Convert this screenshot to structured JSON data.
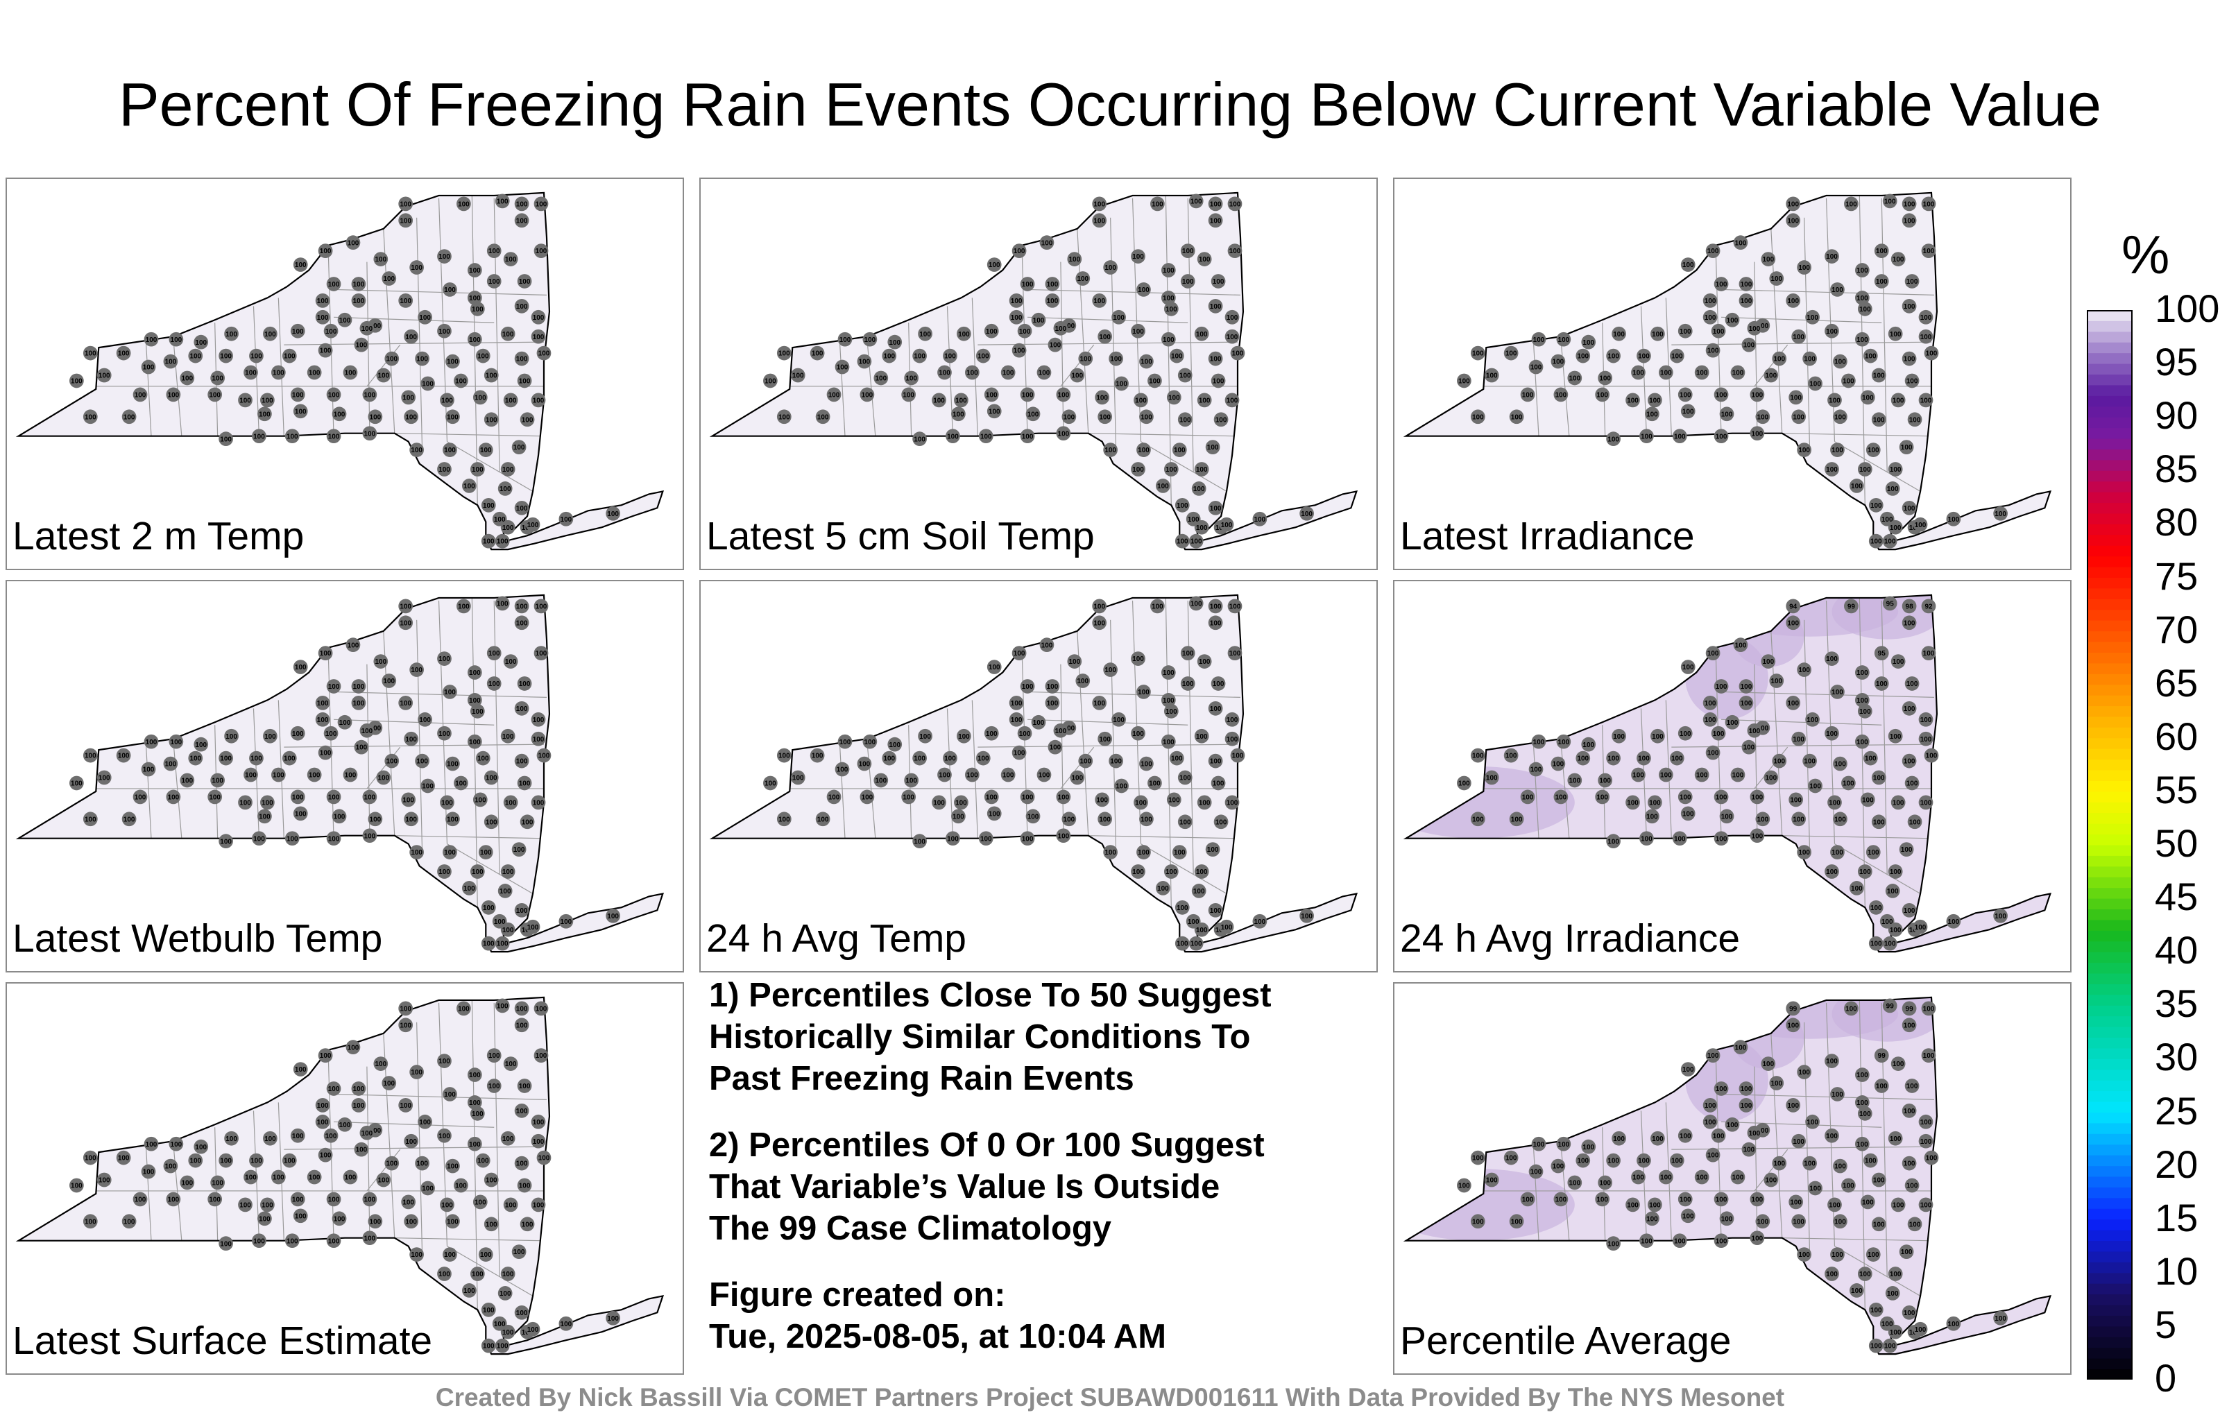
{
  "title": "Percent Of Freezing Rain Events Occurring Below Current Variable Value",
  "panels": [
    {
      "label": "Latest 2 m Temp",
      "tinted": false,
      "stations": [
        "100",
        "100",
        "100",
        "100",
        "100",
        "100",
        "100",
        "100",
        "100",
        "100",
        "100",
        "100",
        "100",
        "100",
        "100",
        "100",
        "100",
        "100",
        "100",
        "100",
        "100",
        "100",
        "100",
        "100",
        "100",
        "100",
        "100",
        "100",
        "100",
        "100",
        "100",
        "100",
        "100",
        "100",
        "100",
        "100",
        "100",
        "100",
        "100",
        "100",
        "100",
        "100",
        "100",
        "100",
        "100",
        "100",
        "100",
        "100",
        "100",
        "100",
        "100",
        "100",
        "100",
        "100",
        "100",
        "100",
        "100",
        "100",
        "100",
        "100",
        "100",
        "100",
        "100",
        "100",
        "100",
        "100",
        "100",
        "100",
        "100",
        "100",
        "100",
        "100",
        "100",
        "100",
        "100",
        "100",
        "100",
        "100",
        "100",
        "100",
        "100",
        "100",
        "100",
        "100",
        "100",
        "100",
        "100",
        "100",
        "100",
        "100",
        "100",
        "100",
        "100",
        "100",
        "100",
        "100",
        "100",
        "100",
        "100",
        "100",
        "100",
        "100",
        "100",
        "100",
        "100",
        "100",
        "100",
        "100",
        "100",
        "100",
        "100",
        "100",
        "100",
        "100",
        "100",
        "100",
        "100",
        "100",
        "100",
        "100",
        "100",
        "100",
        "100",
        "100",
        "100",
        "100"
      ]
    },
    {
      "label": "Latest 5 cm Soil Temp",
      "tinted": false,
      "stations": [
        "100",
        "100",
        "100",
        "100",
        "100",
        "100",
        "100",
        "100",
        "100",
        "100",
        "100",
        "100",
        "100",
        "100",
        "100",
        "100",
        "100",
        "100",
        "100",
        "100",
        "100",
        "100",
        "100",
        "100",
        "100",
        "100",
        "100",
        "100",
        "100",
        "100",
        "100",
        "100",
        "100",
        "100",
        "100",
        "100",
        "100",
        "100",
        "100",
        "100",
        "100",
        "100",
        "100",
        "100",
        "100",
        "100",
        "100",
        "100",
        "100",
        "100",
        "100",
        "100",
        "100",
        "100",
        "100",
        "100",
        "100",
        "100",
        "100",
        "100",
        "100",
        "100",
        "100",
        "100",
        "100",
        "100",
        "100",
        "100",
        "100",
        "100",
        "100",
        "100",
        "100",
        "100",
        "100",
        "100",
        "100",
        "100",
        "100",
        "100",
        "100",
        "100",
        "100",
        "100",
        "100",
        "100",
        "100",
        "100",
        "100",
        "100",
        "100",
        "100",
        "100",
        "100",
        "100",
        "100",
        "100",
        "100",
        "100",
        "100",
        "100",
        "100",
        "100",
        "100",
        "100",
        "100",
        "100",
        "100",
        "100",
        "100",
        "100",
        "100",
        "100",
        "100",
        "100",
        "100",
        "100",
        "100",
        "100",
        "100",
        "100",
        "100",
        "100",
        "100",
        "100",
        "100"
      ]
    },
    {
      "label": "Latest Irradiance",
      "tinted": false,
      "stations": [
        "100",
        "100",
        "100",
        "100",
        "100",
        "100",
        "100",
        "100",
        "100",
        "100",
        "100",
        "100",
        "100",
        "100",
        "100",
        "100",
        "100",
        "100",
        "100",
        "100",
        "100",
        "100",
        "100",
        "100",
        "100",
        "100",
        "100",
        "100",
        "100",
        "100",
        "100",
        "100",
        "100",
        "100",
        "100",
        "100",
        "100",
        "100",
        "100",
        "100",
        "100",
        "100",
        "100",
        "100",
        "100",
        "100",
        "100",
        "100",
        "100",
        "100",
        "100",
        "100",
        "100",
        "100",
        "100",
        "100",
        "100",
        "100",
        "100",
        "100",
        "100",
        "100",
        "100",
        "100",
        "100",
        "100",
        "100",
        "100",
        "100",
        "100",
        "100",
        "100",
        "100",
        "100",
        "100",
        "100",
        "100",
        "100",
        "100",
        "100",
        "100",
        "100",
        "100",
        "100",
        "100",
        "100",
        "100",
        "100",
        "100",
        "100",
        "100",
        "100",
        "100",
        "100",
        "100",
        "100",
        "100",
        "100",
        "100",
        "100",
        "100",
        "100",
        "100",
        "100",
        "100",
        "100",
        "100",
        "100",
        "100",
        "100",
        "100",
        "100",
        "100",
        "100",
        "100",
        "100",
        "100",
        "100",
        "100",
        "100",
        "100",
        "100",
        "100",
        "100",
        "100",
        "100"
      ]
    },
    {
      "label": "Latest Wetbulb Temp",
      "tinted": false,
      "stations": [
        "100",
        "100",
        "100",
        "100",
        "100",
        "100",
        "100",
        "100",
        "100",
        "100",
        "100",
        "100",
        "100",
        "100",
        "100",
        "100",
        "100",
        "100",
        "100",
        "100",
        "100",
        "100",
        "100",
        "100",
        "100",
        "100",
        "100",
        "100",
        "100",
        "100",
        "100",
        "100",
        "100",
        "100",
        "100",
        "100",
        "100",
        "100",
        "100",
        "100",
        "100",
        "100",
        "100",
        "100",
        "100",
        "100",
        "100",
        "100",
        "100",
        "100",
        "100",
        "100",
        "100",
        "100",
        "100",
        "100",
        "100",
        "100",
        "100",
        "100",
        "100",
        "100",
        "100",
        "100",
        "100",
        "100",
        "100",
        "100",
        "100",
        "100",
        "100",
        "100",
        "100",
        "100",
        "100",
        "100",
        "100",
        "100",
        "100",
        "100",
        "100",
        "100",
        "100",
        "100",
        "100",
        "100",
        "100",
        "100",
        "100",
        "100",
        "100",
        "100",
        "100",
        "100",
        "100",
        "100",
        "100",
        "100",
        "100",
        "100",
        "100",
        "100",
        "100",
        "100",
        "100",
        "100",
        "100",
        "100",
        "100",
        "100",
        "100",
        "100",
        "100",
        "100",
        "100",
        "100",
        "100",
        "100",
        "100",
        "100",
        "100",
        "100",
        "100",
        "100",
        "100",
        "100"
      ]
    },
    {
      "label": "24 h Avg Temp",
      "tinted": false,
      "stations": [
        "100",
        "100",
        "100",
        "100",
        "100",
        "100",
        "100",
        "100",
        "100",
        "100",
        "100",
        "100",
        "100",
        "100",
        "100",
        "100",
        "100",
        "100",
        "100",
        "100",
        "100",
        "100",
        "100",
        "100",
        "100",
        "100",
        "100",
        "100",
        "100",
        "100",
        "100",
        "100",
        "100",
        "100",
        "100",
        "100",
        "100",
        "100",
        "100",
        "100",
        "100",
        "100",
        "100",
        "100",
        "100",
        "100",
        "100",
        "100",
        "100",
        "100",
        "100",
        "100",
        "100",
        "100",
        "100",
        "100",
        "100",
        "100",
        "100",
        "100",
        "100",
        "100",
        "100",
        "100",
        "100",
        "100",
        "100",
        "100",
        "100",
        "100",
        "100",
        "100",
        "100",
        "100",
        "100",
        "100",
        "100",
        "100",
        "100",
        "100",
        "100",
        "100",
        "100",
        "100",
        "100",
        "100",
        "100",
        "100",
        "100",
        "100",
        "100",
        "100",
        "100",
        "100",
        "100",
        "100",
        "100",
        "100",
        "100",
        "100",
        "100",
        "100",
        "100",
        "100",
        "100",
        "100",
        "100",
        "100",
        "100",
        "100",
        "100",
        "100",
        "100",
        "100",
        "100",
        "100",
        "100",
        "100",
        "100",
        "100",
        "100",
        "100",
        "100",
        "100",
        "100",
        "100"
      ]
    },
    {
      "label": "24 h Avg Irradiance",
      "tinted": true,
      "stations": [
        "94",
        "99",
        "95",
        "98",
        "92",
        "100",
        "100",
        "100",
        "100",
        "100",
        "100",
        "100",
        "95",
        "100",
        "100",
        "100",
        "100",
        "100",
        "100",
        "100",
        "100",
        "100",
        "100",
        "100",
        "100",
        "100",
        "100",
        "100",
        "100",
        "100",
        "100",
        "100",
        "100",
        "100",
        "100",
        "100",
        "100",
        "100",
        "100",
        "100",
        "100",
        "100",
        "100",
        "100",
        "100",
        "100",
        "100",
        "100",
        "100",
        "100",
        "100",
        "100",
        "100",
        "100",
        "100",
        "100",
        "100",
        "100",
        "100",
        "100",
        "100",
        "100",
        "100",
        "100",
        "100",
        "100",
        "100",
        "100",
        "100",
        "100",
        "100",
        "100",
        "100",
        "100",
        "100",
        "100",
        "100",
        "100",
        "100",
        "100",
        "100",
        "100",
        "100",
        "100",
        "100",
        "100",
        "100",
        "100",
        "100",
        "100",
        "100",
        "100",
        "100",
        "100",
        "100",
        "100",
        "100",
        "100",
        "100",
        "100",
        "100",
        "100",
        "100",
        "100",
        "100",
        "100",
        "100",
        "100",
        "100",
        "100",
        "100",
        "100",
        "100",
        "100",
        "100",
        "100",
        "100",
        "100",
        "100",
        "100",
        "100",
        "100",
        "100",
        "100",
        "100",
        "100"
      ]
    },
    {
      "label": "Latest Surface Estimate",
      "tinted": false,
      "stations": [
        "100",
        "100",
        "100",
        "100",
        "100",
        "100",
        "100",
        "100",
        "100",
        "100",
        "100",
        "100",
        "100",
        "100",
        "100",
        "100",
        "100",
        "100",
        "100",
        "100",
        "100",
        "100",
        "100",
        "100",
        "100",
        "100",
        "100",
        "100",
        "100",
        "100",
        "100",
        "100",
        "100",
        "100",
        "100",
        "100",
        "100",
        "100",
        "100",
        "100",
        "100",
        "100",
        "100",
        "100",
        "100",
        "100",
        "100",
        "100",
        "100",
        "100",
        "100",
        "100",
        "100",
        "100",
        "100",
        "100",
        "100",
        "100",
        "100",
        "100",
        "100",
        "100",
        "100",
        "100",
        "100",
        "100",
        "100",
        "100",
        "100",
        "100",
        "100",
        "100",
        "100",
        "100",
        "100",
        "100",
        "100",
        "100",
        "100",
        "100",
        "100",
        "100",
        "100",
        "100",
        "100",
        "100",
        "100",
        "100",
        "100",
        "100",
        "100",
        "100",
        "100",
        "100",
        "100",
        "100",
        "100",
        "100",
        "100",
        "100",
        "100",
        "100",
        "100",
        "100",
        "100",
        "100",
        "100",
        "100",
        "100",
        "100",
        "100",
        "100",
        "100",
        "100",
        "100",
        "100",
        "100",
        "100",
        "100",
        "100",
        "100",
        "100",
        "100",
        "100",
        "100",
        "100"
      ]
    },
    {
      "label": "Percentile Average",
      "tinted": true,
      "stations": [
        "99",
        "100",
        "99",
        "99",
        "100",
        "100",
        "100",
        "100",
        "100",
        "100",
        "100",
        "100",
        "99",
        "100",
        "100",
        "100",
        "100",
        "100",
        "100",
        "100",
        "100",
        "100",
        "100",
        "100",
        "100",
        "100",
        "100",
        "100",
        "100",
        "100",
        "100",
        "100",
        "100",
        "100",
        "100",
        "100",
        "100",
        "100",
        "100",
        "100",
        "100",
        "100",
        "100",
        "100",
        "100",
        "100",
        "100",
        "100",
        "100",
        "100",
        "100",
        "100",
        "100",
        "100",
        "100",
        "100",
        "100",
        "100",
        "100",
        "100",
        "100",
        "100",
        "100",
        "100",
        "100",
        "100",
        "100",
        "100",
        "100",
        "100",
        "100",
        "100",
        "100",
        "100",
        "100",
        "100",
        "100",
        "100",
        "100",
        "100",
        "100",
        "100",
        "100",
        "100",
        "100",
        "100",
        "100",
        "100",
        "100",
        "100",
        "100",
        "100",
        "100",
        "100",
        "100",
        "100",
        "100",
        "100",
        "100",
        "100",
        "100",
        "100",
        "100",
        "100",
        "100",
        "100",
        "100",
        "100",
        "100",
        "100",
        "100",
        "100",
        "100",
        "100",
        "100",
        "100",
        "100",
        "100",
        "100",
        "100",
        "100",
        "100",
        "100",
        "100",
        "100",
        "100"
      ]
    }
  ],
  "notes": {
    "note1": "1) Percentiles Close To 50 Suggest\nHistorically Similar Conditions To\nPast Freezing Rain Events",
    "note2": "2) Percentiles Of 0 Or 100 Suggest\nThat Variable’s Value Is Outside\nThe 99 Case Climatology",
    "created": "Figure created on:\nTue, 2025-08-05, at 10:04 AM"
  },
  "colorbar": {
    "unit": "%",
    "ticks": [
      "0",
      "5",
      "10",
      "15",
      "20",
      "25",
      "30",
      "35",
      "40",
      "45",
      "50",
      "55",
      "60",
      "65",
      "70",
      "75",
      "80",
      "85",
      "90",
      "95",
      "100"
    ],
    "min": 0,
    "max": 100
  },
  "credit": "Created By Nick Bassill Via COMET Partners Project SUBAWD001611 With Data Provided By The NYS Mesonet",
  "colors": {
    "map_fill": "#f1eef6",
    "map_tint": "#e3d6ee",
    "station_dot": "#6e6e6e",
    "border": "#000000"
  }
}
